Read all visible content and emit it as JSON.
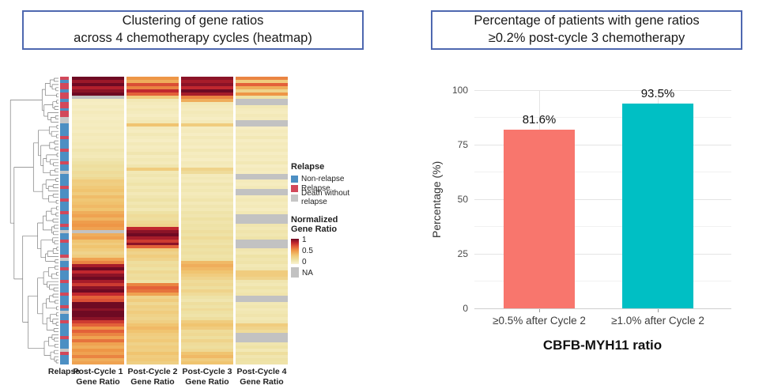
{
  "left_panel": {
    "title_line1": "Clustering of gene ratios",
    "title_line2": "across 4 chemotherapy cycles (heatmap)",
    "annotation_label": "Relapse",
    "column_labels": [
      {
        "line1": "Post-Cycle 1",
        "line2": "Gene Ratio"
      },
      {
        "line1": "Post-Cycle 2",
        "line2": "Gene Ratio"
      },
      {
        "line1": "Post-Cycle 3",
        "line2": "Gene Ratio"
      },
      {
        "line1": "Post-Cycle 4",
        "line2": "Gene Ratio"
      }
    ],
    "legend": {
      "relapse_title": "Relapse",
      "relapse_items": [
        {
          "label": "Non-relapse",
          "color": "#4C8FC3"
        },
        {
          "label": "Relapse",
          "color": "#D2485A"
        },
        {
          "label": "Death without relapse",
          "color": "#C6C6C6"
        }
      ],
      "gradient_title_line1": "Normalized",
      "gradient_title_line2": "Gene Ratio",
      "gradient_ticks": [
        "1",
        "0.5",
        "0",
        "NA"
      ]
    }
  },
  "right_panel": {
    "title_line1": "Percentage of patients with gene ratios",
    "title_line2": "≥0.2% post-cycle 3 chemotherapy"
  },
  "colors": {
    "box_border": "#4E68B0",
    "bar_salmon": "#F8766D",
    "bar_teal": "#00BFC4",
    "na_gray": "#C2C2C2",
    "grid_major": "#E4E4E4",
    "grid_minor": "#F1F1F1"
  },
  "chart_data": [
    {
      "type": "heatmap",
      "title": "Clustering of gene ratios across 4 chemotherapy cycles (heatmap)",
      "columns": [
        "Post-Cycle 1 Gene Ratio",
        "Post-Cycle 2 Gene Ratio",
        "Post-Cycle 3 Gene Ratio",
        "Post-Cycle 4 Gene Ratio"
      ],
      "row_annotation_name": "Relapse",
      "annotation_legend": {
        "N": "Non-relapse",
        "R": "Relapse",
        "D": "Death without relapse"
      },
      "annotation_colors": {
        "N": "#4C8FC3",
        "R": "#D2485A",
        "D": "#C6C6C6"
      },
      "colorscale": {
        "label": "Normalized Gene Ratio",
        "ticks": [
          1,
          0.5,
          0
        ],
        "na_label": "NA"
      },
      "palette": [
        [
          0,
          "#FAF3D2"
        ],
        [
          0.15,
          "#EEE2A6"
        ],
        [
          0.35,
          "#F0C470"
        ],
        [
          0.55,
          "#EE9646"
        ],
        [
          0.72,
          "#E15A37"
        ],
        [
          0.86,
          "#BE232D"
        ],
        [
          1,
          "#6E0A23"
        ]
      ],
      "relapse": "RNRRNRRNRRNRRDDNNNNRNNNRNNNRNNDNNNNRNNNRNNNRNNNRNDNNRNNNNRDNNRNNNRNNNRNNNRNDNNRNNNNRNNNDRNNN",
      "values": [
        [
          1.0,
          0.55,
          0.95,
          0.6
        ],
        [
          0.92,
          0.45,
          0.9,
          0.3
        ],
        [
          1.0,
          0.75,
          0.95,
          0.7
        ],
        [
          0.88,
          0.6,
          0.85,
          0.45
        ],
        [
          0.95,
          0.85,
          1.0,
          0.25
        ],
        [
          1.0,
          0.7,
          0.9,
          0.55
        ],
        [
          null,
          0.3,
          0.6,
          0.15
        ],
        [
          0.06,
          0.1,
          0.45,
          null
        ],
        [
          0.05,
          0.08,
          0.1,
          null
        ],
        [
          0.07,
          0.06,
          0.08,
          0.1
        ],
        [
          0.05,
          0.09,
          0.06,
          0.07
        ],
        [
          0.08,
          0.07,
          0.09,
          0.06
        ],
        [
          0.06,
          0.05,
          0.07,
          0.09
        ],
        [
          0.05,
          0.08,
          0.05,
          0.07
        ],
        [
          0.07,
          0.1,
          0.08,
          null
        ],
        [
          0.06,
          0.35,
          0.3,
          null
        ],
        [
          0.08,
          0.08,
          0.06,
          0.05
        ],
        [
          0.06,
          0.06,
          0.08,
          0.08
        ],
        [
          0.09,
          0.1,
          0.05,
          0.06
        ],
        [
          0.07,
          0.07,
          0.09,
          0.1
        ],
        [
          0.08,
          0.05,
          0.06,
          0.05
        ],
        [
          0.1,
          0.09,
          0.08,
          0.08
        ],
        [
          0.08,
          0.06,
          0.05,
          0.06
        ],
        [
          0.12,
          0.08,
          0.1,
          0.09
        ],
        [
          0.1,
          0.12,
          0.06,
          0.05
        ],
        [
          0.09,
          0.07,
          0.08,
          0.08
        ],
        [
          0.12,
          0.1,
          0.05,
          0.06
        ],
        [
          0.15,
          0.08,
          0.09,
          0.1
        ],
        [
          0.18,
          0.12,
          0.07,
          0.05
        ],
        [
          0.16,
          0.3,
          0.25,
          0.08
        ],
        [
          0.2,
          0.1,
          0.2,
          0.06
        ],
        [
          0.18,
          0.12,
          0.08,
          null
        ],
        [
          0.22,
          0.09,
          0.1,
          null
        ],
        [
          0.3,
          0.11,
          0.08,
          0.08
        ],
        [
          0.28,
          0.14,
          0.12,
          0.06
        ],
        [
          0.32,
          0.1,
          0.09,
          0.09
        ],
        [
          0.35,
          0.13,
          0.11,
          null
        ],
        [
          0.3,
          0.09,
          0.08,
          null
        ],
        [
          0.38,
          0.12,
          0.1,
          0.08
        ],
        [
          0.33,
          0.15,
          0.13,
          0.1
        ],
        [
          0.36,
          0.11,
          0.09,
          0.07
        ],
        [
          0.4,
          0.14,
          0.12,
          0.09
        ],
        [
          0.35,
          0.1,
          0.1,
          0.06
        ],
        [
          0.45,
          0.16,
          0.14,
          0.1
        ],
        [
          0.5,
          0.2,
          0.12,
          null
        ],
        [
          0.42,
          0.18,
          0.16,
          null
        ],
        [
          0.52,
          0.22,
          0.13,
          null
        ],
        [
          0.55,
          0.25,
          0.15,
          0.12
        ],
        [
          0.5,
          0.85,
          0.14,
          0.1
        ],
        [
          null,
          0.95,
          0.18,
          0.13
        ],
        [
          0.45,
          1.0,
          0.15,
          0.11
        ],
        [
          0.5,
          0.9,
          0.2,
          0.14
        ],
        [
          0.35,
          0.8,
          0.16,
          null
        ],
        [
          0.3,
          0.95,
          0.14,
          null
        ],
        [
          0.35,
          0.7,
          0.18,
          null
        ],
        [
          0.3,
          0.3,
          0.15,
          0.12
        ],
        [
          0.25,
          0.25,
          0.17,
          0.1
        ],
        [
          0.3,
          0.3,
          0.14,
          0.15
        ],
        [
          0.5,
          0.25,
          0.16,
          0.12
        ],
        [
          0.6,
          0.18,
          0.4,
          0.14
        ],
        [
          0.9,
          0.2,
          0.45,
          0.1
        ],
        [
          1.0,
          0.16,
          0.4,
          0.12
        ],
        [
          0.85,
          0.22,
          0.35,
          0.3
        ],
        [
          0.95,
          0.18,
          0.3,
          0.3
        ],
        [
          1.0,
          0.2,
          0.25,
          0.25
        ],
        [
          0.9,
          0.15,
          0.2,
          0.12
        ],
        [
          0.8,
          0.6,
          0.22,
          0.1
        ],
        [
          0.95,
          0.7,
          0.18,
          0.14
        ],
        [
          1.0,
          0.65,
          0.25,
          0.11
        ],
        [
          0.85,
          0.5,
          0.2,
          0.13
        ],
        [
          0.7,
          0.25,
          0.15,
          null
        ],
        [
          0.75,
          0.3,
          0.12,
          null
        ],
        [
          1.0,
          0.22,
          0.18,
          0.1
        ],
        [
          1.0,
          0.28,
          0.15,
          0.12
        ],
        [
          0.95,
          0.25,
          0.2,
          0.09
        ],
        [
          1.0,
          0.3,
          0.16,
          0.11
        ],
        [
          1.0,
          0.26,
          0.14,
          0.13
        ],
        [
          0.95,
          0.24,
          0.18,
          0.1
        ],
        [
          0.8,
          0.28,
          0.3,
          0.12
        ],
        [
          0.7,
          0.35,
          0.35,
          0.3
        ],
        [
          0.55,
          0.4,
          0.3,
          0.25
        ],
        [
          0.7,
          0.35,
          0.2,
          0.2
        ],
        [
          0.6,
          0.3,
          0.22,
          null
        ],
        [
          0.5,
          0.28,
          0.18,
          null
        ],
        [
          0.65,
          0.32,
          0.25,
          null
        ],
        [
          0.5,
          0.26,
          0.2,
          0.12
        ],
        [
          0.45,
          0.3,
          0.18,
          0.15
        ],
        [
          0.55,
          0.28,
          0.22,
          0.1
        ],
        [
          0.5,
          0.35,
          0.35,
          0.18
        ],
        [
          0.6,
          0.3,
          0.4,
          0.12
        ],
        [
          0.45,
          0.32,
          0.3,
          0.15
        ],
        [
          0.5,
          0.28,
          0.35,
          0.14
        ]
      ]
    },
    {
      "type": "bar",
      "title": "Percentage of patients with gene ratios ≥0.2% post-cycle 3 chemotherapy",
      "categories": [
        "≥0.5% after Cycle 2",
        "≥1.0% after Cycle 2"
      ],
      "values": [
        81.6,
        93.5
      ],
      "bar_labels": [
        "81.6%",
        "93.5%"
      ],
      "bar_colors": [
        "#F8766D",
        "#00BFC4"
      ],
      "xlabel": "CBFB-MYH11 ratio",
      "ylabel": "Percentage (%)",
      "yticks": [
        0,
        25,
        50,
        75,
        100
      ],
      "yminor": [
        12.5,
        37.5,
        62.5,
        87.5
      ],
      "ylim": [
        0,
        100
      ],
      "grid": true,
      "legend_position": "none"
    }
  ]
}
